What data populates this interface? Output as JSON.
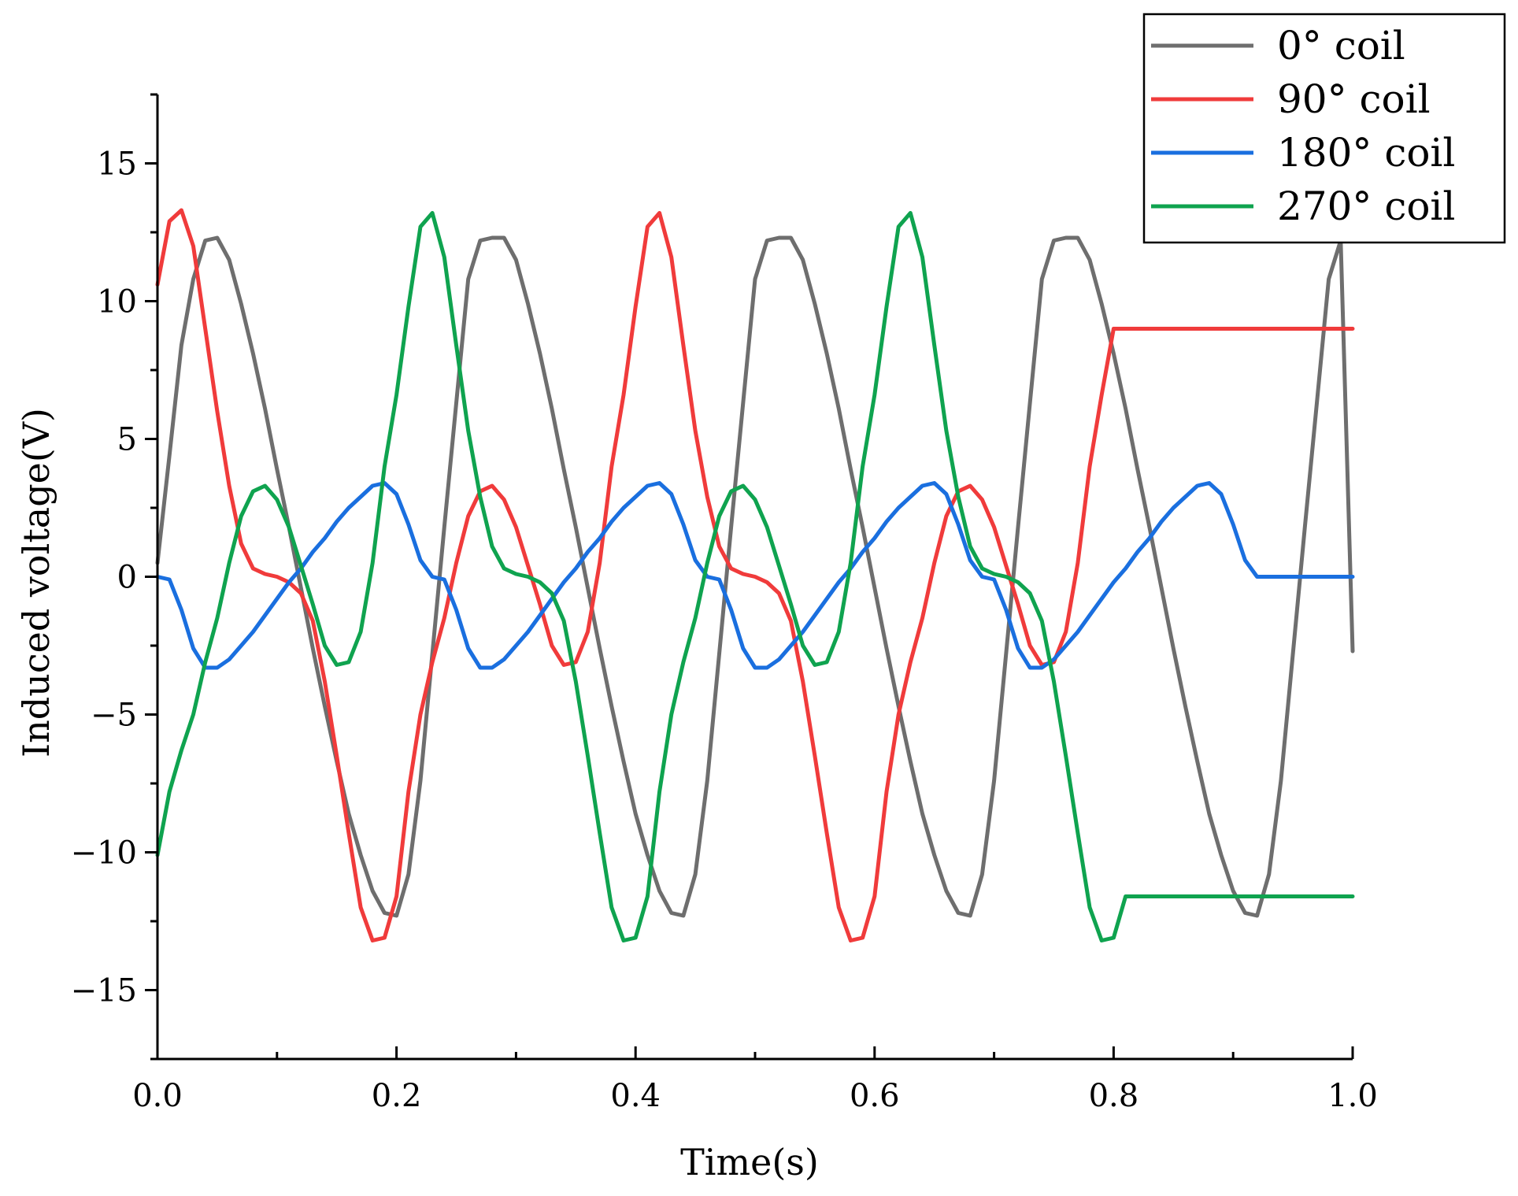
{
  "chart_data": {
    "type": "line",
    "title": "",
    "xlabel": "Time(s)",
    "ylabel": "Induced voltage(V)",
    "xlim": [
      0.0,
      1.0
    ],
    "ylim": [
      -17.5,
      17.5
    ],
    "xticks": [
      0.0,
      0.2,
      0.4,
      0.6,
      0.8,
      1.0
    ],
    "xtick_labels": [
      "0.0",
      "0.2",
      "0.4",
      "0.6",
      "0.8",
      "1.0"
    ],
    "yticks": [
      -15,
      -10,
      -5,
      0,
      5,
      10,
      15
    ],
    "ytick_labels": [
      "−15",
      "−10",
      "−5",
      "0",
      "5",
      "10",
      "15"
    ],
    "grid": false,
    "legend_position": "top-right",
    "series": [
      {
        "name": "0° coil",
        "color": "#6e6e6e",
        "x": [
          0.0,
          0.01,
          0.02,
          0.03,
          0.04,
          0.05,
          0.06,
          0.07,
          0.08,
          0.09,
          0.1,
          0.11,
          0.12,
          0.13,
          0.14,
          0.15,
          0.16,
          0.17,
          0.18,
          0.19,
          0.2,
          0.21,
          0.22,
          0.23,
          0.24,
          0.25,
          0.26,
          0.27,
          0.28,
          0.29,
          0.3,
          0.31,
          0.32,
          0.33,
          0.34,
          0.35,
          0.36,
          0.37,
          0.38,
          0.39,
          0.4,
          0.41,
          0.42,
          0.43,
          0.44,
          0.45,
          0.46,
          0.47,
          0.48,
          0.49,
          0.5,
          0.51,
          0.52,
          0.53,
          0.54,
          0.55,
          0.56,
          0.57,
          0.58,
          0.59,
          0.6,
          0.61,
          0.62,
          0.63,
          0.64,
          0.65,
          0.66,
          0.67,
          0.68,
          0.69,
          0.7,
          0.71,
          0.72,
          0.73,
          0.74,
          0.75,
          0.76,
          0.77,
          0.78,
          0.79,
          0.8,
          0.81,
          0.82,
          0.83,
          0.84,
          0.85,
          0.86,
          0.87,
          0.88,
          0.89,
          0.9,
          0.91,
          0.92,
          0.93,
          0.94,
          0.95,
          0.96,
          0.97,
          0.98,
          0.99,
          1.0
        ],
        "y": [
          0.5,
          4.4,
          8.4,
          10.8,
          12.2,
          12.3,
          11.5,
          9.9,
          8.1,
          6.1,
          3.9,
          1.8,
          -0.4,
          -2.6,
          -4.7,
          -6.7,
          -8.6,
          -10.1,
          -11.4,
          -12.2,
          -12.3,
          -10.8,
          -7.4,
          -2.8,
          1.8,
          6.3,
          10.8,
          12.2,
          12.3,
          12.3,
          11.5,
          9.9,
          8.1,
          6.1,
          3.9,
          1.8,
          -0.4,
          -2.6,
          -4.7,
          -6.7,
          -8.6,
          -10.1,
          -11.4,
          -12.2,
          -12.3,
          -10.8,
          -7.4,
          -2.8,
          1.8,
          6.3,
          10.8,
          12.2,
          12.3,
          12.3,
          11.5,
          9.9,
          8.1,
          6.1,
          3.9,
          1.8,
          -0.4,
          -2.6,
          -4.7,
          -6.7,
          -8.6,
          -10.1,
          -11.4,
          -12.2,
          -12.3,
          -10.8,
          -7.4,
          -2.8,
          1.8,
          6.3,
          10.8,
          12.2,
          12.3,
          12.3,
          11.5,
          9.9,
          8.1,
          6.1,
          3.9,
          1.8,
          -0.4,
          -2.6,
          -4.7,
          -6.7,
          -8.6,
          -10.1,
          -11.4,
          -12.2,
          -12.3,
          -10.8,
          -7.4,
          -2.8,
          1.8,
          6.3,
          10.8,
          12.2,
          -2.7
        ]
      },
      {
        "name": "90° coil",
        "color": "#f03b3b",
        "x": [
          0.0,
          0.01,
          0.02,
          0.03,
          0.04,
          0.05,
          0.06,
          0.07,
          0.08,
          0.09,
          0.1,
          0.11,
          0.12,
          0.13,
          0.14,
          0.15,
          0.16,
          0.17,
          0.18,
          0.19,
          0.2,
          0.21,
          0.22,
          0.23,
          0.24,
          0.25,
          0.26,
          0.27,
          0.28,
          0.29,
          0.3,
          0.31,
          0.32,
          0.33,
          0.34,
          0.35,
          0.36,
          0.37,
          0.38,
          0.39,
          0.4,
          0.41,
          0.42,
          0.43,
          0.44,
          0.45,
          0.46,
          0.47,
          0.48,
          0.49,
          0.5,
          0.51,
          0.52,
          0.53,
          0.54,
          0.55,
          0.56,
          0.57,
          0.58,
          0.59,
          0.6,
          0.61,
          0.62,
          0.63,
          0.64,
          0.65,
          0.66,
          0.67,
          0.68,
          0.69,
          0.7,
          0.71,
          0.72,
          0.73,
          0.74,
          0.75,
          0.76,
          0.77,
          0.78,
          0.79,
          0.8,
          0.81,
          0.82,
          0.83,
          0.84,
          0.85,
          0.86,
          0.87,
          0.88,
          0.89,
          0.9,
          0.91,
          0.92,
          0.93,
          0.94,
          0.95,
          0.96,
          0.97,
          0.98,
          0.99,
          1.0
        ],
        "y": [
          10.6,
          12.9,
          13.3,
          12.0,
          9.0,
          6.0,
          3.3,
          1.2,
          0.3,
          0.1,
          0.0,
          -0.2,
          -0.6,
          -1.6,
          -3.8,
          -6.5,
          -9.3,
          -12.0,
          -13.2,
          -13.1,
          -11.6,
          -7.8,
          -5.0,
          -3.1,
          -1.5,
          0.5,
          2.2,
          3.1,
          3.3,
          2.8,
          1.8,
          0.4,
          -1.0,
          -2.5,
          -3.2,
          -3.1,
          -2.0,
          0.5,
          4.0,
          6.6,
          9.8,
          12.7,
          13.2,
          11.6,
          8.4,
          5.3,
          2.9,
          1.1,
          0.3,
          0.1,
          0.0,
          -0.2,
          -0.6,
          -1.6,
          -3.8,
          -6.5,
          -9.3,
          -12.0,
          -13.2,
          -13.1,
          -11.6,
          -7.8,
          -5.0,
          -3.1,
          -1.5,
          0.5,
          2.2,
          3.1,
          3.3,
          2.8,
          1.8,
          0.4,
          -1.0,
          -2.5,
          -3.2,
          -3.1,
          -2.0,
          0.5,
          4.0,
          6.6,
          9.0,
          9.0,
          9.0,
          9.0,
          9.0,
          9.0,
          9.0,
          9.0,
          9.0,
          9.0,
          9.0,
          9.0,
          9.0,
          9.0,
          9.0,
          9.0,
          9.0,
          9.0,
          9.0,
          9.0,
          9.0
        ]
      },
      {
        "name": "180° coil",
        "color": "#1a6fdf",
        "x": [
          0.0,
          0.01,
          0.02,
          0.03,
          0.04,
          0.05,
          0.06,
          0.07,
          0.08,
          0.09,
          0.1,
          0.11,
          0.12,
          0.13,
          0.14,
          0.15,
          0.16,
          0.17,
          0.18,
          0.19,
          0.2,
          0.21,
          0.22,
          0.23,
          0.24,
          0.25,
          0.26,
          0.27,
          0.28,
          0.29,
          0.3,
          0.31,
          0.32,
          0.33,
          0.34,
          0.35,
          0.36,
          0.37,
          0.38,
          0.39,
          0.4,
          0.41,
          0.42,
          0.43,
          0.44,
          0.45,
          0.46,
          0.47,
          0.48,
          0.49,
          0.5,
          0.51,
          0.52,
          0.53,
          0.54,
          0.55,
          0.56,
          0.57,
          0.58,
          0.59,
          0.6,
          0.61,
          0.62,
          0.63,
          0.64,
          0.65,
          0.66,
          0.67,
          0.68,
          0.69,
          0.7,
          0.71,
          0.72,
          0.73,
          0.74,
          0.75,
          0.76,
          0.77,
          0.78,
          0.79,
          0.8,
          0.81,
          0.82,
          0.83,
          0.84,
          0.85,
          0.86,
          0.87,
          0.88,
          0.89,
          0.9,
          0.91,
          0.92,
          0.93,
          0.94,
          0.95,
          0.96,
          0.97,
          0.98,
          0.99,
          1.0
        ],
        "y": [
          0.0,
          -0.1,
          -1.2,
          -2.6,
          -3.3,
          -3.3,
          -3.0,
          -2.5,
          -2.0,
          -1.4,
          -0.8,
          -0.2,
          0.3,
          0.9,
          1.4,
          2.0,
          2.5,
          2.9,
          3.3,
          3.4,
          3.0,
          1.9,
          0.6,
          0.0,
          -0.1,
          -1.2,
          -2.6,
          -3.3,
          -3.3,
          -3.0,
          -2.5,
          -2.0,
          -1.4,
          -0.8,
          -0.2,
          0.3,
          0.9,
          1.4,
          2.0,
          2.5,
          2.9,
          3.3,
          3.4,
          3.0,
          1.9,
          0.6,
          0.0,
          -0.1,
          -1.2,
          -2.6,
          -3.3,
          -3.3,
          -3.0,
          -2.5,
          -2.0,
          -1.4,
          -0.8,
          -0.2,
          0.3,
          0.9,
          1.4,
          2.0,
          2.5,
          2.9,
          3.3,
          3.4,
          3.0,
          1.9,
          0.6,
          0.0,
          -0.1,
          -1.2,
          -2.6,
          -3.3,
          -3.3,
          -3.0,
          -2.5,
          -2.0,
          -1.4,
          -0.8,
          -0.2,
          0.3,
          0.9,
          1.4,
          2.0,
          2.5,
          2.9,
          3.3,
          3.4,
          3.0,
          1.9,
          0.6,
          0.0,
          0.0,
          0.0,
          0.0,
          0.0,
          0.0,
          0.0,
          0.0,
          0.0
        ]
      },
      {
        "name": "270° coil",
        "color": "#0fa34f",
        "x": [
          0.0,
          0.01,
          0.02,
          0.03,
          0.04,
          0.05,
          0.06,
          0.07,
          0.08,
          0.09,
          0.1,
          0.11,
          0.12,
          0.13,
          0.14,
          0.15,
          0.16,
          0.17,
          0.18,
          0.19,
          0.2,
          0.21,
          0.22,
          0.23,
          0.24,
          0.25,
          0.26,
          0.27,
          0.28,
          0.29,
          0.3,
          0.31,
          0.32,
          0.33,
          0.34,
          0.35,
          0.36,
          0.37,
          0.38,
          0.39,
          0.4,
          0.41,
          0.42,
          0.43,
          0.44,
          0.45,
          0.46,
          0.47,
          0.48,
          0.49,
          0.5,
          0.51,
          0.52,
          0.53,
          0.54,
          0.55,
          0.56,
          0.57,
          0.58,
          0.59,
          0.6,
          0.61,
          0.62,
          0.63,
          0.64,
          0.65,
          0.66,
          0.67,
          0.68,
          0.69,
          0.7,
          0.71,
          0.72,
          0.73,
          0.74,
          0.75,
          0.76,
          0.77,
          0.78,
          0.79,
          0.8,
          0.81,
          0.82,
          0.83,
          0.84,
          0.85,
          0.86,
          0.87,
          0.88,
          0.89,
          0.9,
          0.91,
          0.92,
          0.93,
          0.94,
          0.95,
          0.96,
          0.97,
          0.98,
          0.99,
          1.0
        ],
        "y": [
          -10.1,
          -7.8,
          -6.3,
          -5.0,
          -3.1,
          -1.5,
          0.5,
          2.2,
          3.1,
          3.3,
          2.8,
          1.8,
          0.4,
          -1.0,
          -2.5,
          -3.2,
          -3.1,
          -2.0,
          0.5,
          4.0,
          6.6,
          9.8,
          12.7,
          13.2,
          11.6,
          8.4,
          5.3,
          2.9,
          1.1,
          0.3,
          0.1,
          0.0,
          -0.2,
          -0.6,
          -1.6,
          -3.8,
          -6.5,
          -9.3,
          -12.0,
          -13.2,
          -13.1,
          -11.6,
          -7.8,
          -5.0,
          -3.1,
          -1.5,
          0.5,
          2.2,
          3.1,
          3.3,
          2.8,
          1.8,
          0.4,
          -1.0,
          -2.5,
          -3.2,
          -3.1,
          -2.0,
          0.5,
          4.0,
          6.6,
          9.8,
          12.7,
          13.2,
          11.6,
          8.4,
          5.3,
          2.9,
          1.1,
          0.3,
          0.1,
          0.0,
          -0.2,
          -0.6,
          -1.6,
          -3.8,
          -6.5,
          -9.3,
          -12.0,
          -13.2,
          -13.1,
          -11.6,
          -11.6,
          -11.6,
          -11.6,
          -11.6,
          -11.6,
          -11.6,
          -11.6,
          -11.6,
          -11.6,
          -11.6,
          -11.6,
          -11.6,
          -11.6,
          -11.6,
          -11.6,
          -11.6,
          -11.6,
          -11.6,
          -11.6
        ]
      }
    ]
  }
}
